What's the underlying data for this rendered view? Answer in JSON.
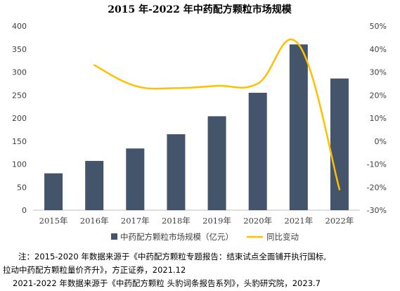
{
  "chart_data": {
    "type": "bar+line",
    "title": "2015 年-2022 年中药配方颗粒市场规模",
    "categories": [
      "2015年",
      "2016年",
      "2017年",
      "2018年",
      "2019年",
      "2020年",
      "2021年",
      "2022年"
    ],
    "series": [
      {
        "name": "中药配方颗粒市场规模（亿元）",
        "kind": "bar",
        "axis": "left",
        "color": "#44546a",
        "values": [
          80,
          107,
          134,
          165,
          204,
          255,
          360,
          286
        ]
      },
      {
        "name": "同比变动",
        "kind": "line",
        "axis": "right",
        "color": "#ffc000",
        "values": [
          null,
          33,
          24,
          23,
          24,
          25,
          42,
          -21
        ]
      }
    ],
    "left_axis": {
      "ylim": [
        0,
        400
      ],
      "ticks": [
        "0",
        "50",
        "100",
        "150",
        "200",
        "250",
        "300",
        "350",
        "400"
      ]
    },
    "right_axis": {
      "ylim": [
        -30,
        50
      ],
      "ticks": [
        "-30%",
        "-20%",
        "-10%",
        "0%",
        "10%",
        "20%",
        "30%",
        "40%",
        "50%"
      ]
    },
    "grid": false,
    "legend_position": "bottom"
  },
  "notes": {
    "line1": "注：2015-2020 年数据来源于《中药配方颗粒专题报告：结束试点全面铺开执行国标,",
    "line2": "拉动中药配方颗粒量价齐升》，方正证券，2021.12",
    "line3": "2021-2022 年数据来源于《中药配方颗粒 头豹词条报告系列》，头豹研究院，2023.7"
  }
}
